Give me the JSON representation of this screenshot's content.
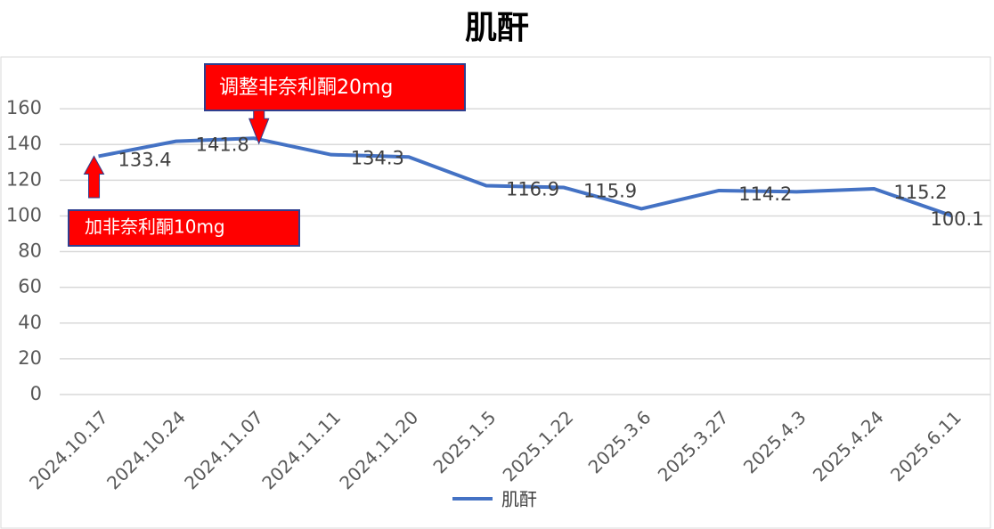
{
  "chart_data": {
    "type": "line",
    "title": "肌酐",
    "categories": [
      "2024.10.17",
      "2024.10.24",
      "2024.11.07",
      "2024.11.11",
      "2024.11.20",
      "2025.1.5",
      "2025.1.22",
      "2025.3.6",
      "2025.3.27",
      "2025.4.3",
      "2025.4.24",
      "2025.6.11"
    ],
    "series": [
      {
        "name": "肌酐",
        "color": "#4472c4",
        "values": [
          133.4,
          141.8,
          143.5,
          134.3,
          133,
          116.9,
          115.9,
          104,
          114.2,
          113.5,
          115.2,
          100.1
        ],
        "value_labels": [
          "133.4",
          "141.8",
          null,
          "134.3",
          null,
          "116.9",
          "115.9",
          null,
          "114.2",
          null,
          "115.2",
          "100.1"
        ]
      }
    ],
    "ylim": [
      0,
      180
    ],
    "yticks": [
      0,
      20,
      40,
      60,
      80,
      100,
      120,
      140,
      160
    ],
    "grid": true,
    "annotations": [
      {
        "text": "调整非奈利酮20mg",
        "category": 2,
        "direction": "down"
      },
      {
        "text": "加非奈利酮10mg",
        "category": 0,
        "direction": "up"
      }
    ]
  }
}
